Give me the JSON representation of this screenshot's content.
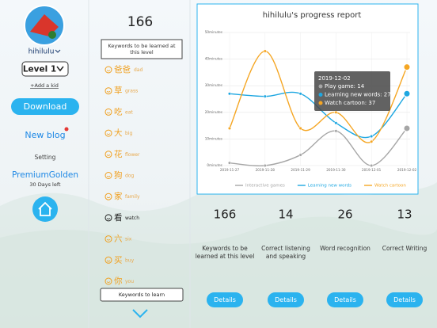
{
  "sidebar": {
    "username": "hihilulu",
    "level": "Level 1",
    "add_kid": "+Add a kid",
    "download": "Download",
    "new_blog": "New blog",
    "setting": "Setting",
    "membership": "PremiumGolden",
    "days_left": "30 Days left"
  },
  "keywords": {
    "count": 166,
    "header": "Keywords to be learned at this level",
    "items": [
      {
        "hanzi": "爸爸",
        "english": "dad"
      },
      {
        "hanzi": "草",
        "english": "grass"
      },
      {
        "hanzi": "吃",
        "english": "eat"
      },
      {
        "hanzi": "大",
        "english": "big"
      },
      {
        "hanzi": "花",
        "english": "flower"
      },
      {
        "hanzi": "狗",
        "english": "dog"
      },
      {
        "hanzi": "家",
        "english": "family"
      },
      {
        "hanzi": "看",
        "english": "watch",
        "active": true
      },
      {
        "hanzi": "六",
        "english": "six"
      },
      {
        "hanzi": "买",
        "english": "buy"
      },
      {
        "hanzi": "你",
        "english": "you"
      }
    ],
    "button": "Keywords to learn"
  },
  "chart_data": {
    "type": "line",
    "title": "hihilulu's progress report",
    "categories": [
      "2019-11-27",
      "2019-11-28",
      "2019-11-29",
      "2019-11-30",
      "2019-12-01",
      "2019-12-02"
    ],
    "series": [
      {
        "name": "Interactive games",
        "color": "#a6a6a6",
        "values": [
          1,
          0,
          4,
          13,
          0,
          14
        ]
      },
      {
        "name": "Learning new words",
        "color": "#1ea7e1",
        "values": [
          27,
          26,
          27,
          16,
          11,
          27
        ]
      },
      {
        "name": "Watch cartoon",
        "color": "#f5a623",
        "values": [
          14,
          43,
          14,
          20,
          9,
          37
        ]
      }
    ],
    "ylim": [
      0,
      50
    ],
    "yticks": [
      {
        "value": 0,
        "label": "0minutes"
      },
      {
        "value": 10,
        "label": "10minutes"
      },
      {
        "value": 20,
        "label": "20minutes"
      },
      {
        "value": 30,
        "label": "30minutes"
      },
      {
        "value": 40,
        "label": "40minutes"
      },
      {
        "value": 50,
        "label": "50minutes"
      }
    ],
    "grid": true,
    "legend": "bottom",
    "tooltip": {
      "title": "2019-12-02",
      "lines": [
        "Play game: 14",
        "Learning new words: 27",
        "Watch cartoon: 37"
      ]
    }
  },
  "stats": [
    {
      "value": 166,
      "label": "Keywords to be learned at this level",
      "button": "Details"
    },
    {
      "value": 14,
      "label": "Correct listening and speaking",
      "button": "Details"
    },
    {
      "value": 26,
      "label": "Word recognition",
      "button": "Details"
    },
    {
      "value": 13,
      "label": "Correct Writing",
      "button": "Details"
    }
  ]
}
